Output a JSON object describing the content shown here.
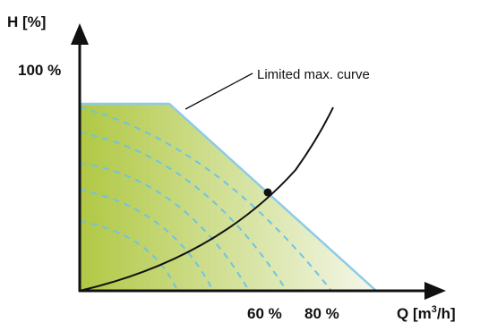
{
  "y_axis": {
    "label": "H [%]",
    "tick_label": "100 %"
  },
  "x_axis": {
    "label_prefix": "Q [m",
    "label_superscript": "3",
    "label_suffix": "/h]",
    "tick_labels": [
      "60 %",
      "80 %"
    ]
  },
  "annotation": "Limited max. curve",
  "colors": {
    "fill_left": "#b0c844",
    "fill_right": "#f5f7ea",
    "curve_outline": "#8ccbe8",
    "dashed_curves": "#6ec3e6",
    "axes": "#111111"
  },
  "icons": {
    "axis_arrows": "arrowhead"
  }
}
